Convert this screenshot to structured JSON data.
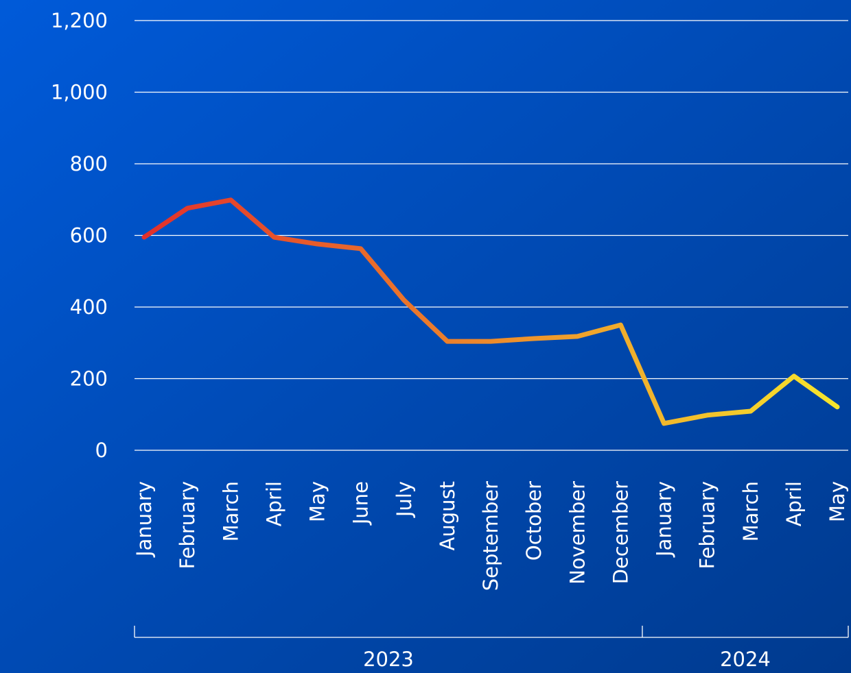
{
  "chart_data": {
    "type": "line",
    "categories": [
      "January",
      "February",
      "March",
      "April",
      "May",
      "June",
      "July",
      "August",
      "September",
      "October",
      "November",
      "December",
      "January",
      "February",
      "March",
      "April",
      "May"
    ],
    "groups": [
      {
        "label": "2023",
        "size": 12
      },
      {
        "label": "2024",
        "size": 5
      }
    ],
    "series": [
      {
        "values": [
          595,
          676,
          699,
          595,
          576,
          563,
          419,
          304,
          304,
          312,
          318,
          350,
          75,
          98,
          109,
          207,
          121
        ],
        "gradient": [
          "#e2302b",
          "#f7e52c"
        ]
      }
    ],
    "ylim": [
      0,
      1200
    ],
    "yticks": [
      0,
      200,
      400,
      600,
      800,
      {
        "value": 1000,
        "label": "1,000"
      },
      {
        "value": 1200,
        "label": "1,200"
      }
    ],
    "grid": true
  }
}
